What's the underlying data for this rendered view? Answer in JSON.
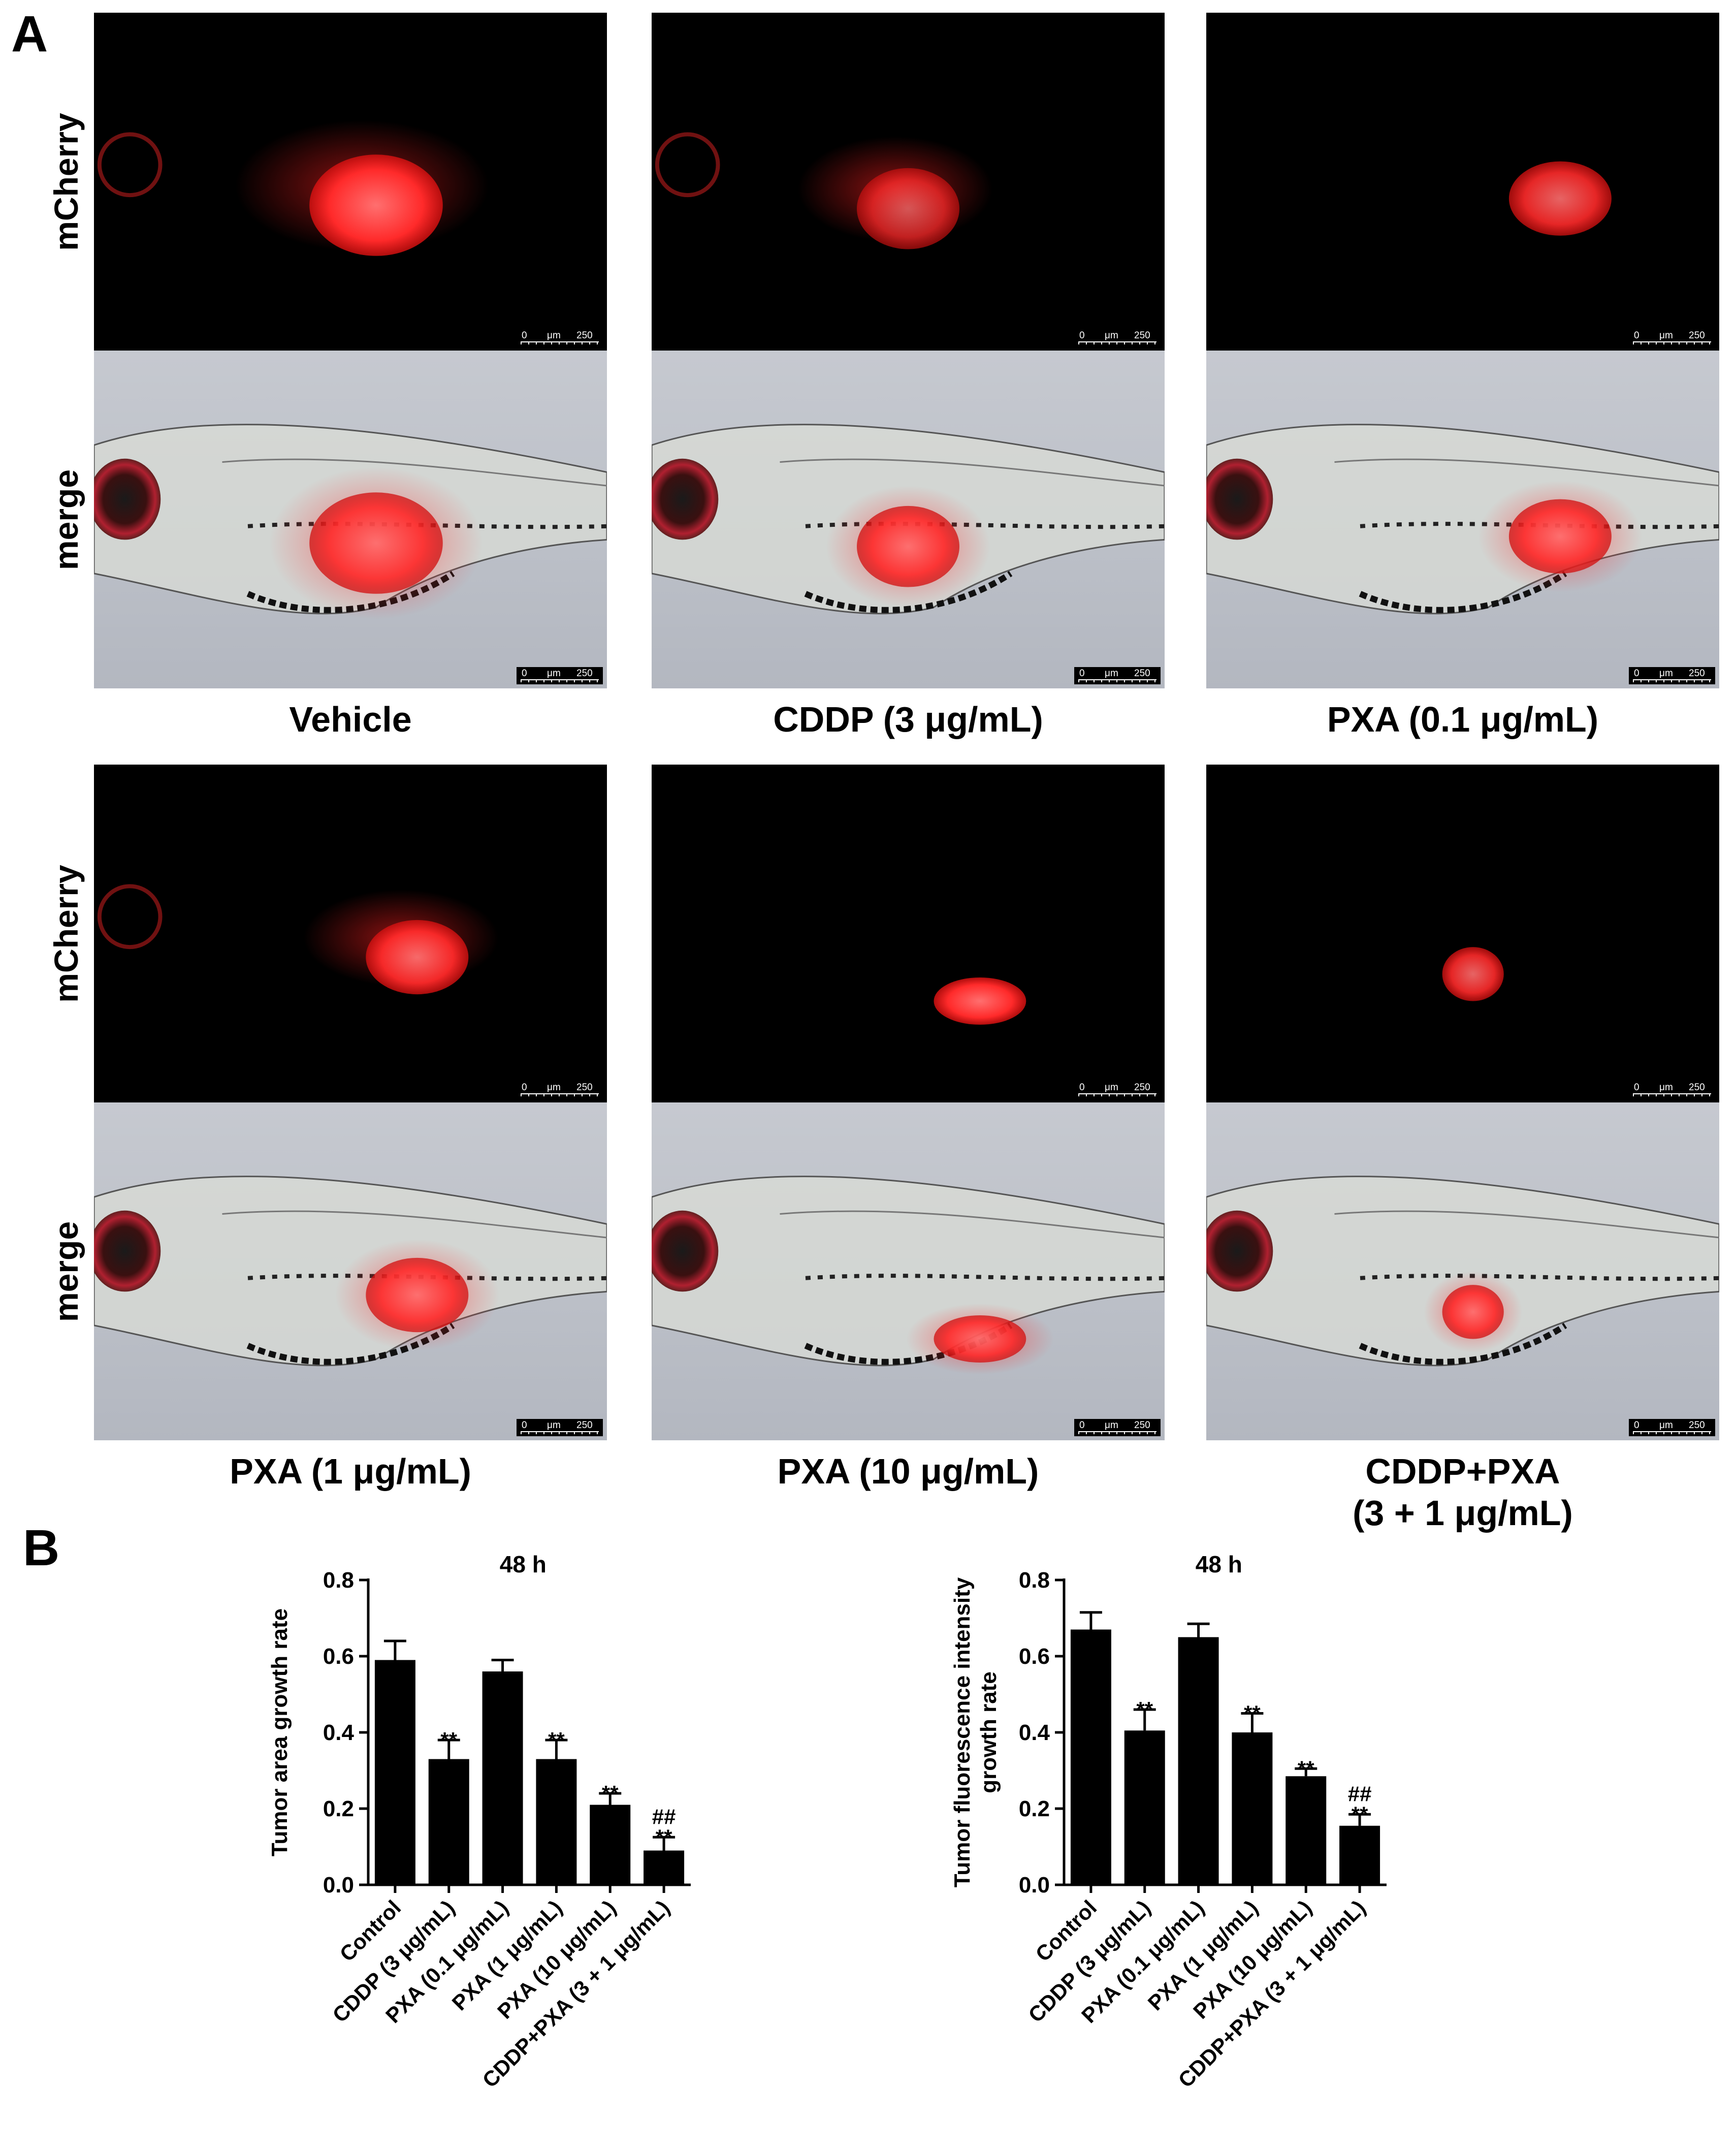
{
  "panel_a": {
    "letter": "A",
    "row_labels": {
      "top": "mCherry",
      "bottom": "merge"
    },
    "conditions": [
      "Vehicle",
      "CDDP (3 μg/mL)",
      "PXA (0.1 μg/mL)",
      "PXA (1 μg/mL)",
      "PXA (10 μg/mL)",
      "CDDP+PXA (3 + 1 μg/mL)"
    ],
    "condition_label_lines": [
      [
        "Vehicle"
      ],
      [
        "CDDP (3 μg/mL)"
      ],
      [
        "PXA (0.1 μg/mL)"
      ],
      [
        "PXA (1 μg/mL)"
      ],
      [
        "PXA (10 μg/mL)"
      ],
      [
        "CDDP+PXA",
        "(3 + 1 μg/mL)"
      ]
    ],
    "scale_bar": {
      "zero": "0",
      "unit": "μm",
      "value": "250"
    }
  },
  "panel_b": {
    "letter": "B"
  },
  "chart_data": [
    {
      "type": "bar",
      "title": "48 h",
      "xlabel": "",
      "ylabel": "Tumor area growth rate",
      "ylim": [
        0,
        0.8
      ],
      "yticks": [
        "0.0",
        "0.2",
        "0.4",
        "0.6",
        "0.8"
      ],
      "categories": [
        "Control",
        "CDDP (3 μg/mL)",
        "PXA (0.1 μg/mL)",
        "PXA (1 μg/mL)",
        "PXA (10 μg/mL)",
        "CDDP+PXA (3 + 1 μg/mL)"
      ],
      "values": [
        0.59,
        0.33,
        0.56,
        0.33,
        0.21,
        0.09
      ],
      "errors": [
        0.05,
        0.05,
        0.03,
        0.05,
        0.03,
        0.035
      ],
      "annotations": [
        [],
        [
          "**"
        ],
        [],
        [
          "**"
        ],
        [
          "**"
        ],
        [
          "##",
          "**"
        ]
      ],
      "bar_color": "#000000"
    },
    {
      "type": "bar",
      "title": "48 h",
      "xlabel": "",
      "ylabel": "Tumor fluorescence intensity growth rate",
      "ylabel_lines": [
        "Tumor fluorescence intensity",
        "growth rate"
      ],
      "ylim": [
        0,
        0.8
      ],
      "yticks": [
        "0.0",
        "0.2",
        "0.4",
        "0.6",
        "0.8"
      ],
      "categories": [
        "Control",
        "CDDP (3 μg/mL)",
        "PXA (0.1 μg/mL)",
        "PXA (1 μg/mL)",
        "PXA (10 μg/mL)",
        "CDDP+PXA (3 + 1 μg/mL)"
      ],
      "values": [
        0.67,
        0.405,
        0.65,
        0.4,
        0.285,
        0.155
      ],
      "errors": [
        0.045,
        0.055,
        0.035,
        0.05,
        0.02,
        0.03
      ],
      "annotations": [
        [],
        [
          "**"
        ],
        [],
        [
          "**"
        ],
        [
          "**"
        ],
        [
          "##",
          "**"
        ]
      ],
      "bar_color": "#000000"
    }
  ]
}
